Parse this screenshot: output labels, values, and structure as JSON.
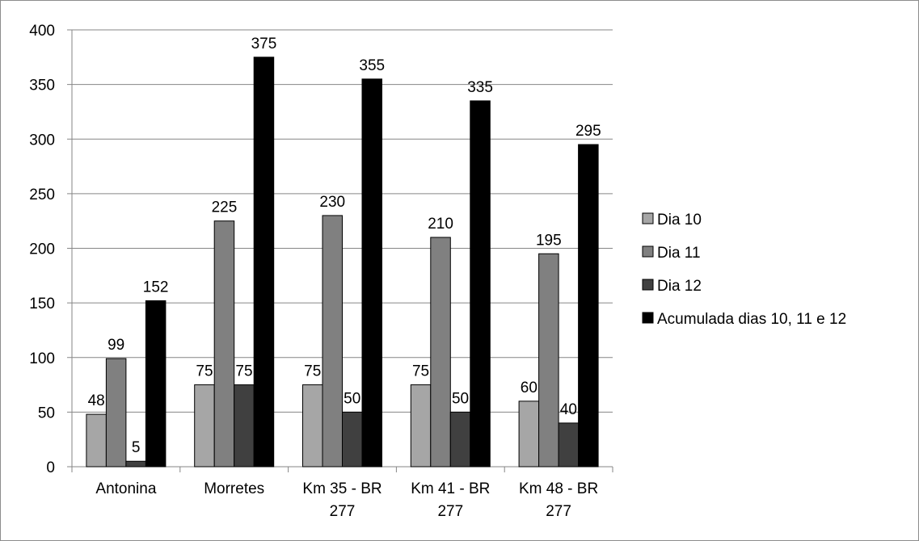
{
  "chart_data": {
    "type": "bar",
    "categories": [
      [
        "Antonina"
      ],
      [
        "Morretes"
      ],
      [
        "Km 35 - BR",
        "277"
      ],
      [
        "Km 41 - BR",
        "277"
      ],
      [
        "Km 48 - BR",
        "277"
      ]
    ],
    "series": [
      {
        "name": "Dia 10",
        "color": "#a6a6a6",
        "values": [
          48,
          75,
          75,
          75,
          60
        ]
      },
      {
        "name": "Dia 11",
        "color": "#808080",
        "values": [
          99,
          225,
          230,
          210,
          195
        ]
      },
      {
        "name": "Dia 12",
        "color": "#404040",
        "values": [
          5,
          75,
          50,
          50,
          40
        ]
      },
      {
        "name": "Acumulada dias 10, 11 e 12",
        "color": "#000000",
        "values": [
          152,
          375,
          355,
          335,
          295
        ]
      }
    ],
    "ylim": [
      0,
      400
    ],
    "yticks": [
      0,
      50,
      100,
      150,
      200,
      250,
      300,
      350,
      400
    ],
    "grid": true,
    "legend_position": "right",
    "title": "",
    "xlabel": "",
    "ylabel": ""
  }
}
